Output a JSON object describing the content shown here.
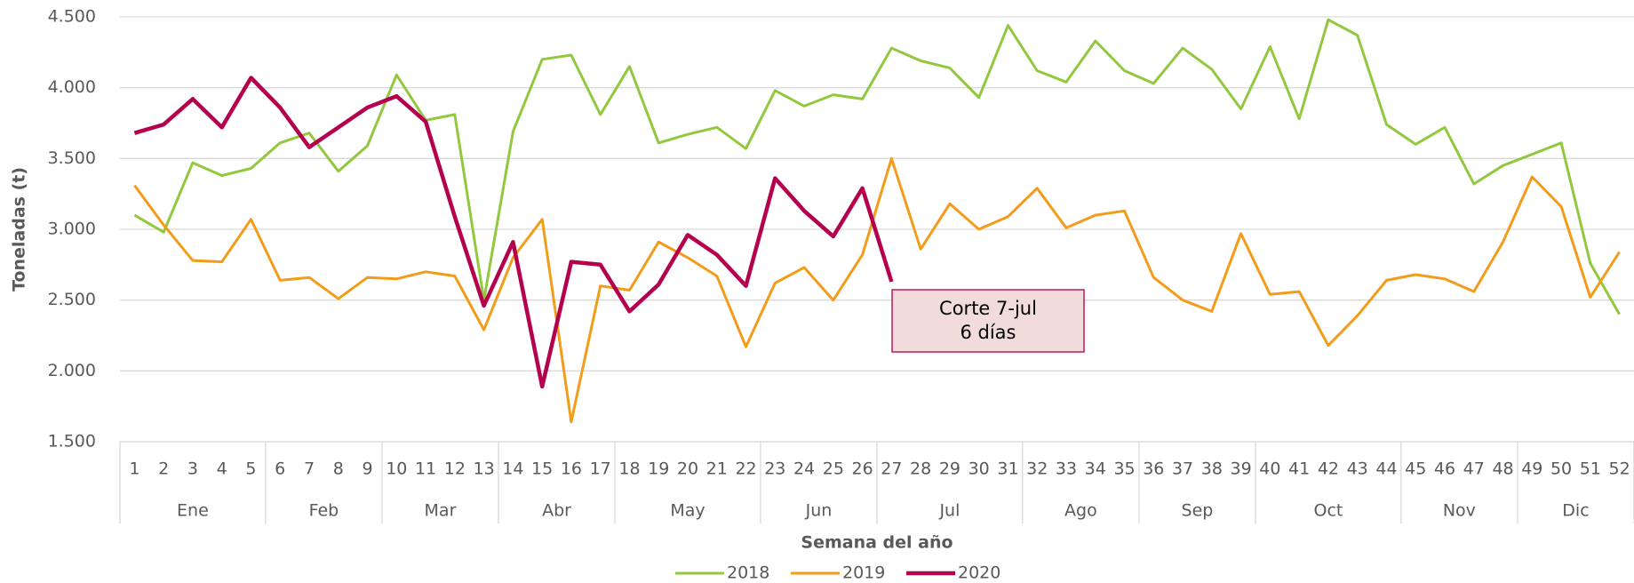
{
  "chart_data": {
    "type": "line",
    "y_label": "Toneladas (t)",
    "x_label": "Semana del año",
    "categories": [
      "1",
      "2",
      "3",
      "4",
      "5",
      "6",
      "7",
      "8",
      "9",
      "10",
      "11",
      "12",
      "13",
      "14",
      "15",
      "16",
      "17",
      "18",
      "19",
      "20",
      "21",
      "22",
      "23",
      "24",
      "25",
      "26",
      "27",
      "28",
      "29",
      "30",
      "31",
      "32",
      "33",
      "34",
      "35",
      "36",
      "37",
      "38",
      "39",
      "40",
      "41",
      "42",
      "43",
      "44",
      "45",
      "46",
      "47",
      "48",
      "49",
      "50",
      "51",
      "52"
    ],
    "category_groups": [
      {
        "label": "Ene",
        "span": 5
      },
      {
        "label": "Feb",
        "span": 4
      },
      {
        "label": "Mar",
        "span": 4
      },
      {
        "label": "Abr",
        "span": 4
      },
      {
        "label": "May",
        "span": 5
      },
      {
        "label": "Jun",
        "span": 4
      },
      {
        "label": "Jul",
        "span": 5
      },
      {
        "label": "Ago",
        "span": 4
      },
      {
        "label": "Sep",
        "span": 4
      },
      {
        "label": "Oct",
        "span": 5
      },
      {
        "label": "Nov",
        "span": 4
      },
      {
        "label": "Dic",
        "span": 4
      }
    ],
    "series": [
      {
        "name": "2018",
        "color": "#92c83e",
        "values": [
          3100,
          2980,
          3470,
          3380,
          3430,
          3610,
          3680,
          3410,
          3590,
          4090,
          3770,
          3810,
          2500,
          3690,
          4200,
          4230,
          3810,
          4150,
          3610,
          3670,
          3720,
          3570,
          3980,
          3870,
          3950,
          3920,
          4280,
          4190,
          4140,
          3930,
          4440,
          4120,
          4040,
          4330,
          4120,
          4030,
          4280,
          4130,
          3850,
          4290,
          3780,
          4480,
          4370,
          3740,
          3600,
          3720,
          3320,
          3450,
          3530,
          3610,
          2760,
          2400
        ]
      },
      {
        "name": "2019",
        "color": "#f39c1a",
        "values": [
          3310,
          3030,
          2780,
          2770,
          3070,
          2640,
          2660,
          2510,
          2660,
          2650,
          2700,
          2670,
          2290,
          2800,
          3070,
          1640,
          2600,
          2570,
          2910,
          2800,
          2670,
          2170,
          2620,
          2730,
          2500,
          2820,
          3500,
          2860,
          3180,
          3000,
          3090,
          3290,
          3010,
          3100,
          3130,
          2660,
          2500,
          2420,
          2970,
          2540,
          2560,
          2180,
          2390,
          2640,
          2680,
          2650,
          2560,
          2910,
          3370,
          3160,
          2520,
          2840
        ]
      },
      {
        "name": "2020",
        "color": "#b5004e",
        "values": [
          3680,
          3740,
          3920,
          3720,
          4070,
          3860,
          3580,
          3720,
          3860,
          3940,
          3760,
          3090,
          2460,
          2910,
          1890,
          2770,
          2750,
          2420,
          2610,
          2960,
          2820,
          2600,
          3360,
          3130,
          2950,
          3290,
          2630,
          null,
          null,
          null,
          null,
          null,
          null,
          null,
          null,
          null,
          null,
          null,
          null,
          null,
          null,
          null,
          null,
          null,
          null,
          null,
          null,
          null,
          null,
          null,
          null,
          null
        ]
      }
    ],
    "ylim": [
      1500,
      4500
    ],
    "yticks": [
      {
        "value": 1500,
        "label": "1.500"
      },
      {
        "value": 2000,
        "label": "2.000"
      },
      {
        "value": 2500,
        "label": "2.500"
      },
      {
        "value": 3000,
        "label": "3.000"
      },
      {
        "value": 3500,
        "label": "3.500"
      },
      {
        "value": 4000,
        "label": "4.000"
      },
      {
        "value": 4500,
        "label": "4.500"
      }
    ],
    "grid": true,
    "annotation": [
      "Corte 7-jul",
      "6 días"
    ],
    "legend": "bottom"
  }
}
